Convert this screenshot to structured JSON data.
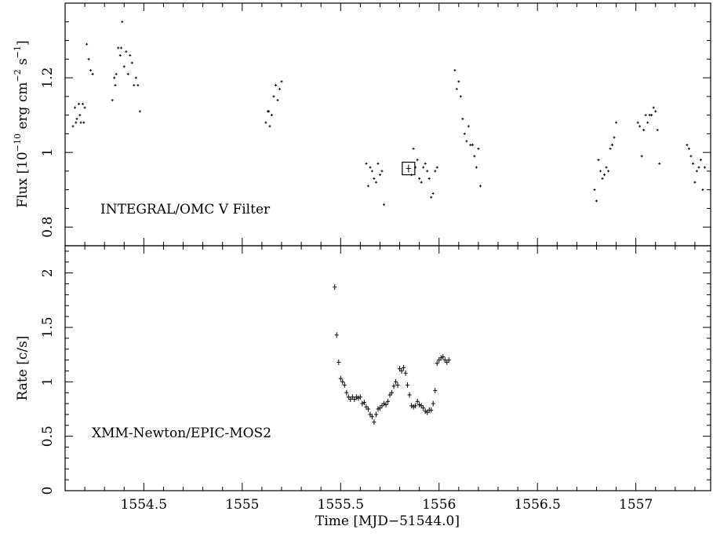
{
  "chart_data": [
    {
      "type": "scatter",
      "panel": "top",
      "annotation": "INTEGRAL/OMC V Filter",
      "ylabel_main": "Flux [10",
      "ylabel_exp1": "−10",
      "ylabel_mid": " erg cm",
      "ylabel_exp2": "−2",
      "ylabel_mid2": " s",
      "ylabel_exp3": "−1",
      "ylabel_end": "]",
      "xlim": [
        1554.1,
        1557.38
      ],
      "ylim": [
        0.75,
        1.4
      ],
      "y_tick_values": [
        0.8,
        1,
        1.2
      ],
      "y_tick_labels": [
        "0.8",
        "1",
        "1.2"
      ],
      "x_tick_values": [
        1554.5,
        1555,
        1555.5,
        1556,
        1556.5,
        1557
      ],
      "highlight_box": {
        "x": 1555.845,
        "y": 0.957
      },
      "series": [
        {
          "x": [
            1554.14,
            1554.15,
            1554.16,
            1554.17,
            1554.18,
            1554.19,
            1554.2,
            1554.21,
            1554.22,
            1554.23,
            1554.24,
            1554.155,
            1554.175,
            1554.195,
            1554.34,
            1554.35,
            1554.36,
            1554.37,
            1554.38,
            1554.39,
            1554.4,
            1554.41,
            1554.42,
            1554.43,
            1554.44,
            1554.45,
            1554.46,
            1554.47,
            1554.48,
            1554.355,
            1554.385,
            1555.12,
            1555.13,
            1555.14,
            1555.15,
            1555.16,
            1555.17,
            1555.18,
            1555.19,
            1555.2,
            1555.135,
            1555.63,
            1555.64,
            1555.65,
            1555.66,
            1555.67,
            1555.68,
            1555.69,
            1555.7,
            1555.71,
            1555.72,
            1555.86,
            1555.87,
            1555.88,
            1555.89,
            1555.9,
            1555.91,
            1555.92,
            1555.93,
            1555.94,
            1555.95,
            1555.96,
            1555.97,
            1555.98,
            1555.99,
            1556.08,
            1556.09,
            1556.1,
            1556.11,
            1556.12,
            1556.13,
            1556.14,
            1556.15,
            1556.16,
            1556.17,
            1556.18,
            1556.19,
            1556.2,
            1556.21,
            1556.79,
            1556.8,
            1556.81,
            1556.82,
            1556.83,
            1556.84,
            1556.85,
            1556.86,
            1556.87,
            1556.88,
            1556.89,
            1556.9,
            1557.01,
            1557.02,
            1557.03,
            1557.04,
            1557.05,
            1557.06,
            1557.07,
            1557.08,
            1557.09,
            1557.1,
            1557.11,
            1557.12,
            1557.26,
            1557.27,
            1557.28,
            1557.29,
            1557.3,
            1557.31,
            1557.32,
            1557.33,
            1557.34,
            1557.35
          ],
          "y": [
            1.07,
            1.12,
            1.09,
            1.13,
            1.08,
            1.13,
            1.12,
            1.29,
            1.25,
            1.22,
            1.21,
            1.08,
            1.1,
            1.08,
            1.14,
            1.2,
            1.21,
            1.28,
            1.26,
            1.35,
            1.23,
            1.27,
            1.21,
            1.26,
            1.24,
            1.18,
            1.2,
            1.18,
            1.11,
            1.18,
            1.28,
            1.08,
            1.11,
            1.07,
            1.1,
            1.15,
            1.18,
            1.14,
            1.17,
            1.19,
            1.11,
            0.97,
            0.91,
            0.96,
            0.95,
            0.93,
            0.92,
            0.97,
            0.94,
            0.95,
            0.86,
            0.94,
            1.01,
            0.96,
            0.98,
            0.93,
            0.92,
            0.96,
            0.97,
            0.95,
            0.93,
            0.88,
            0.89,
            0.95,
            0.96,
            1.22,
            1.17,
            1.19,
            1.15,
            1.09,
            1.05,
            1.03,
            1.07,
            1.02,
            1.02,
            0.99,
            0.96,
            1.01,
            0.91,
            0.9,
            0.87,
            0.98,
            0.95,
            0.93,
            0.94,
            0.96,
            0.95,
            1.01,
            1.02,
            1.04,
            1.08,
            1.08,
            1.07,
            0.99,
            1.06,
            1.1,
            1.08,
            1.1,
            1.1,
            1.12,
            1.11,
            1.06,
            0.97,
            1.02,
            1.01,
            0.99,
            0.97,
            0.92,
            0.95,
            0.96,
            0.98,
            0.9,
            0.96
          ]
        }
      ]
    },
    {
      "type": "scatter",
      "panel": "bottom",
      "annotation": "XMM-Newton/EPIC-MOS2",
      "ylabel": "Rate [c/s]",
      "xlabel": "Time [MJD−51544.0]",
      "xlim": [
        1554.1,
        1557.38
      ],
      "ylim": [
        0,
        2.25
      ],
      "y_tick_values": [
        0,
        0.5,
        1,
        1.5,
        2
      ],
      "y_tick_labels": [
        "0",
        "0.5",
        "1",
        "1.5",
        "2"
      ],
      "x_tick_values": [
        1554.5,
        1555,
        1555.5,
        1556,
        1556.5,
        1557
      ],
      "x_tick_labels": [
        "1554.5",
        "1555",
        "1555.5",
        "1556",
        "1556.5",
        "1557"
      ],
      "series": [
        {
          "x": [
            1555.47,
            1555.48,
            1555.49,
            1555.5,
            1555.51,
            1555.52,
            1555.53,
            1555.54,
            1555.55,
            1555.56,
            1555.57,
            1555.58,
            1555.59,
            1555.6,
            1555.61,
            1555.62,
            1555.63,
            1555.64,
            1555.65,
            1555.66,
            1555.67,
            1555.68,
            1555.69,
            1555.7,
            1555.71,
            1555.72,
            1555.73,
            1555.74,
            1555.75,
            1555.76,
            1555.77,
            1555.78,
            1555.79,
            1555.8,
            1555.81,
            1555.82,
            1555.83,
            1555.84,
            1555.85,
            1555.86,
            1555.87,
            1555.88,
            1555.89,
            1555.9,
            1555.91,
            1555.92,
            1555.93,
            1555.94,
            1555.95,
            1555.96,
            1555.97,
            1555.98,
            1555.99,
            1556.0,
            1556.01,
            1556.02,
            1556.03,
            1556.04,
            1556.05
          ],
          "y": [
            1.87,
            1.43,
            1.18,
            1.03,
            1.0,
            0.97,
            0.9,
            0.86,
            0.84,
            0.86,
            0.84,
            0.86,
            0.85,
            0.86,
            0.8,
            0.81,
            0.77,
            0.75,
            0.7,
            0.68,
            0.63,
            0.7,
            0.75,
            0.76,
            0.78,
            0.8,
            0.79,
            0.82,
            0.88,
            0.9,
            0.96,
            1.0,
            0.97,
            1.12,
            1.1,
            1.13,
            1.08,
            0.97,
            0.88,
            0.78,
            0.77,
            0.78,
            0.82,
            0.79,
            0.78,
            0.76,
            0.73,
            0.72,
            0.74,
            0.74,
            0.8,
            0.92,
            1.17,
            1.2,
            1.22,
            1.23,
            1.2,
            1.18,
            1.2
          ],
          "yerr": 0.025
        }
      ]
    }
  ]
}
